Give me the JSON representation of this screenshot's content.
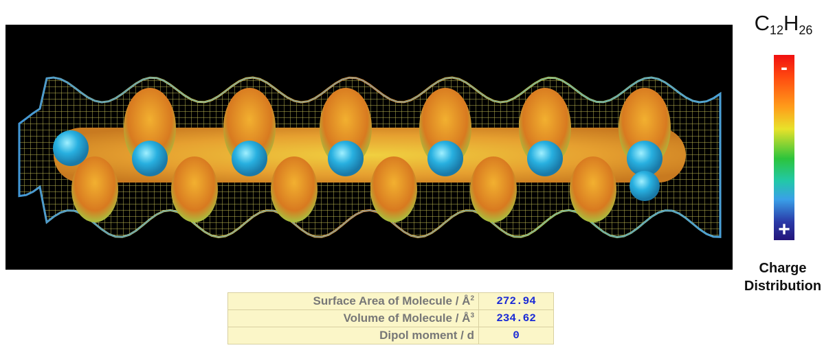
{
  "molecule": {
    "formula_base": "C",
    "formula_c_count": "12",
    "formula_h": "H",
    "formula_h_count": "26"
  },
  "scale": {
    "minus_symbol": "-",
    "plus_symbol": "+",
    "label_line1": "Charge",
    "label_line2": "Distribution",
    "colors": [
      "#f01010",
      "#ff9c1a",
      "#e8e22a",
      "#2cc43c",
      "#22c8a8",
      "#3aa0e8",
      "#23157a"
    ]
  },
  "viewer": {
    "background": "#000000",
    "mesh_color": "#d8e04a",
    "surface_color": "#e6d43c",
    "atom_highlight_color": "#3ab8e8"
  },
  "properties": [
    {
      "label": "Surface Area of Molecule / Å",
      "sup": "2",
      "value": "272.94"
    },
    {
      "label": "Volume of Molecule / Å",
      "sup": "3",
      "value": "234.62"
    },
    {
      "label": "Dipol moment / d",
      "sup": "",
      "value": "0"
    }
  ]
}
